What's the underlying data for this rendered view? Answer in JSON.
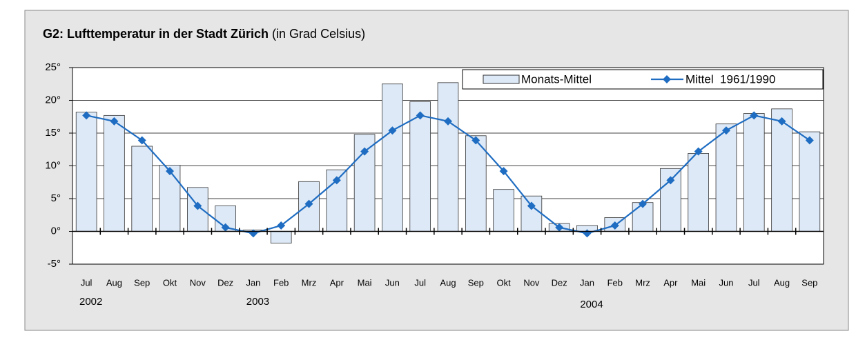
{
  "chart_data": {
    "type": "bar_line",
    "title": "G2: Lufttemperatur in der Stadt Zürich",
    "subtitle": "(in Grad Celsius)",
    "categories": [
      "Jul",
      "Aug",
      "Sep",
      "Okt",
      "Nov",
      "Dez",
      "Jan",
      "Feb",
      "Mrz",
      "Apr",
      "Mai",
      "Jun",
      "Jul",
      "Aug",
      "Sep",
      "Okt",
      "Nov",
      "Dez",
      "Jan",
      "Feb",
      "Mrz",
      "Apr",
      "Mai",
      "Jun",
      "Jul",
      "Aug",
      "Sep"
    ],
    "years": [
      "2002",
      null,
      null,
      null,
      null,
      null,
      "2003",
      null,
      null,
      null,
      null,
      null,
      null,
      null,
      null,
      null,
      null,
      null,
      "2004",
      null,
      null,
      null,
      null,
      null,
      null,
      null,
      null
    ],
    "series": [
      {
        "name": "Monats-Mittel",
        "type": "bar",
        "color": "#dde9f7",
        "values": [
          18.2,
          17.7,
          13.0,
          10.1,
          6.7,
          3.9,
          0.2,
          -1.8,
          7.6,
          9.4,
          14.8,
          22.5,
          19.8,
          22.7,
          14.6,
          6.4,
          5.4,
          1.2,
          0.9,
          2.1,
          4.4,
          9.6,
          11.9,
          16.4,
          18.0,
          18.7,
          15.2
        ]
      },
      {
        "name": "Mittel  1961/1990",
        "type": "line",
        "color": "#1f6dc2",
        "values": [
          17.7,
          16.8,
          13.9,
          9.2,
          3.9,
          0.6,
          -0.3,
          0.9,
          4.2,
          7.8,
          12.2,
          15.4,
          17.7,
          16.8,
          13.9,
          9.2,
          3.9,
          0.6,
          -0.3,
          0.9,
          4.2,
          7.8,
          12.2,
          15.4,
          17.7,
          16.8,
          13.9
        ]
      }
    ],
    "ylim": [
      -5,
      25
    ],
    "yticks": [
      {
        "value": -5,
        "label": "-5°"
      },
      {
        "value": 0,
        "label": "0°"
      },
      {
        "value": 5,
        "label": "5°"
      },
      {
        "value": 10,
        "label": "10°"
      },
      {
        "value": 15,
        "label": "15°"
      },
      {
        "value": 20,
        "label": "20°"
      },
      {
        "value": 25,
        "label": "25°"
      }
    ],
    "grid": true,
    "legend": "upper right"
  }
}
